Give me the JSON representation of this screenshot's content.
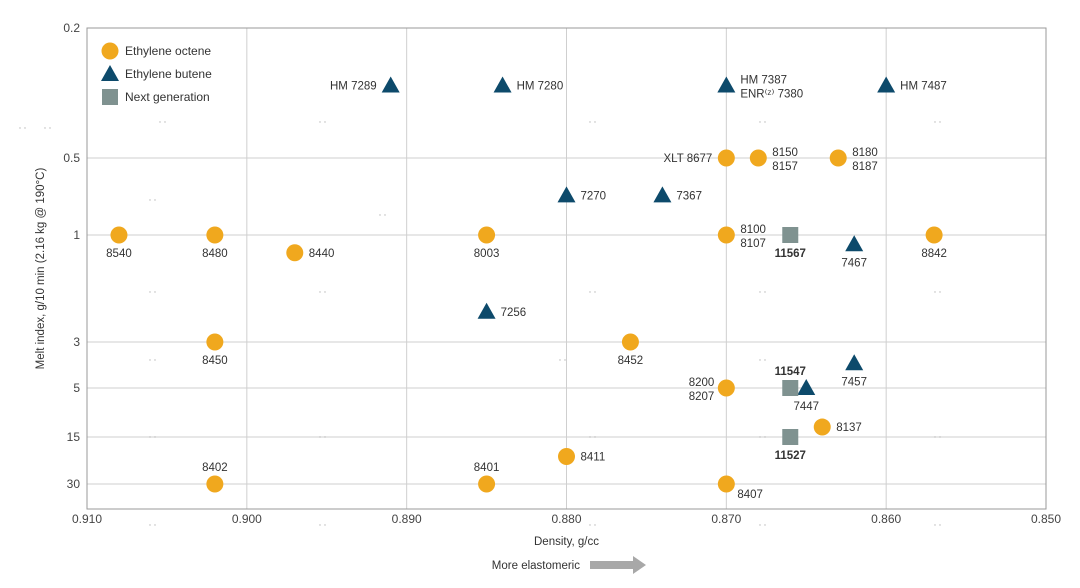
{
  "colors": {
    "octene": "#f0a81e",
    "butene": "#0d4a6b",
    "next": "#7f9290",
    "grid": "#cfcfcf",
    "frame": "#9a9a9a",
    "arrow": "#a8a8a8"
  },
  "chart_data": {
    "type": "scatter",
    "xlabel": "Density, g/cc",
    "ylabel": "Melt index, g/10 min (2.16 kg @ 190°C)",
    "footer_label": "More elastomeric",
    "x_ticks": [
      {
        "value": 0.91,
        "label": "0.910"
      },
      {
        "value": 0.9,
        "label": "0.900"
      },
      {
        "value": 0.89,
        "label": "0.890"
      },
      {
        "value": 0.88,
        "label": "0.880"
      },
      {
        "value": 0.87,
        "label": "0.870"
      },
      {
        "value": 0.86,
        "label": "0.860"
      },
      {
        "value": 0.85,
        "label": "0.850"
      }
    ],
    "xlim": [
      0.91,
      0.85
    ],
    "y_ticks": [
      "0.2",
      "0.5",
      "1",
      "3",
      "5",
      "15",
      "30"
    ],
    "legend": [
      {
        "name": "Ethylene octene",
        "shape": "circle"
      },
      {
        "name": "Ethylene butene",
        "shape": "triangle"
      },
      {
        "name": "Next generation",
        "shape": "square"
      }
    ],
    "series": [
      {
        "name": "Ethylene octene",
        "shape": "circle",
        "points": [
          {
            "x": 0.908,
            "y": "1",
            "label": "8540",
            "anchor": "below"
          },
          {
            "x": 0.902,
            "y": "1",
            "label": "8480",
            "anchor": "below"
          },
          {
            "x": 0.897,
            "y": 1.2,
            "label": "8440",
            "anchor": "right"
          },
          {
            "x": 0.902,
            "y": "3",
            "label": "8450",
            "anchor": "below"
          },
          {
            "x": 0.902,
            "y": "30",
            "label": "8402",
            "anchor": "above"
          },
          {
            "x": 0.885,
            "y": "1",
            "label": "8003",
            "anchor": "below"
          },
          {
            "x": 0.885,
            "y": "30",
            "label": "8401",
            "anchor": "above"
          },
          {
            "x": 0.88,
            "y": 20,
            "label": "8411",
            "anchor": "right"
          },
          {
            "x": 0.876,
            "y": "3",
            "label": "8452",
            "anchor": "below"
          },
          {
            "x": 0.87,
            "y": "0.5",
            "label": "XLT 8677",
            "anchor": "left"
          },
          {
            "x": 0.868,
            "y": "0.5",
            "label": "8150|8157",
            "anchor": "right2"
          },
          {
            "x": 0.863,
            "y": "0.5",
            "label": "8180|8187",
            "anchor": "right2"
          },
          {
            "x": 0.87,
            "y": "1",
            "label": "8100|8107",
            "anchor": "right2"
          },
          {
            "x": 0.857,
            "y": "1",
            "label": "8842",
            "anchor": "below"
          },
          {
            "x": 0.87,
            "y": "5",
            "label": "8200|8207",
            "anchor": "left2"
          },
          {
            "x": 0.864,
            "y": 12,
            "label": "8137",
            "anchor": "right"
          },
          {
            "x": 0.87,
            "y": "30",
            "label": "8407",
            "anchor": "belowright"
          }
        ]
      },
      {
        "name": "Ethylene butene",
        "shape": "triangle",
        "points": [
          {
            "x": 0.891,
            "y": 0.3,
            "label": "HM 7289",
            "anchor": "left"
          },
          {
            "x": 0.884,
            "y": 0.3,
            "label": "HM 7280",
            "anchor": "right"
          },
          {
            "x": 0.87,
            "y": 0.3,
            "label": "HM 7387|ENR⁽ᶻ⁾ 7380",
            "anchor": "right2"
          },
          {
            "x": 0.86,
            "y": 0.3,
            "label": "HM 7487",
            "anchor": "right"
          },
          {
            "x": 0.88,
            "y": 0.7,
            "label": "7270",
            "anchor": "right"
          },
          {
            "x": 0.874,
            "y": 0.7,
            "label": "7367",
            "anchor": "right"
          },
          {
            "x": 0.862,
            "y": 1.1,
            "label": "7467",
            "anchor": "below"
          },
          {
            "x": 0.885,
            "y": 2.2,
            "label": "7256",
            "anchor": "right"
          },
          {
            "x": 0.862,
            "y": 3.8,
            "label": "7457",
            "anchor": "below"
          },
          {
            "x": 0.865,
            "y": 5,
            "label": "7447",
            "anchor": "below"
          }
        ]
      },
      {
        "name": "Next generation",
        "shape": "square",
        "points": [
          {
            "x": 0.866,
            "y": "1",
            "label": "11567",
            "anchor": "below",
            "bold": true
          },
          {
            "x": 0.866,
            "y": "5",
            "label": "11547",
            "anchor": "above",
            "bold": true
          },
          {
            "x": 0.866,
            "y": "15",
            "label": "11527",
            "anchor": "below",
            "bold": true
          }
        ]
      }
    ]
  }
}
